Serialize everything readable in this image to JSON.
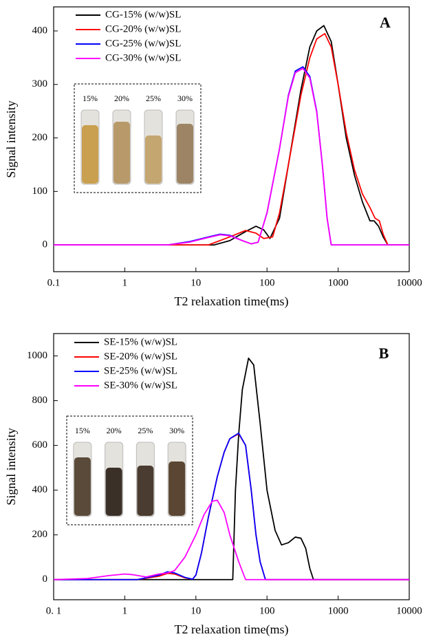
{
  "chart_data": [
    {
      "type": "line",
      "panel_label": "A",
      "xlabel": "T2 relaxation time(ms)",
      "ylabel": "Signal intensity",
      "xscale": "log",
      "xlim": [
        0.1,
        10000
      ],
      "xticks": [
        0.1,
        1,
        10,
        100,
        1000,
        10000
      ],
      "ylim": [
        -50,
        445
      ],
      "yticks": [
        0,
        100,
        200,
        300,
        400
      ],
      "grid": false,
      "legend": "upper left",
      "inset_labels": [
        "15%",
        "20%",
        "25%",
        "30%"
      ],
      "series": [
        {
          "name": "CG-15% (w/w)SL",
          "color": "#000000",
          "x": [
            0.1,
            18,
            30,
            50,
            70,
            90,
            110,
            150,
            200,
            300,
            400,
            500,
            630,
            800,
            1000,
            1300,
            1700,
            2200,
            2800,
            3200,
            3700,
            4300,
            5000,
            10000
          ],
          "values": [
            0,
            0,
            8,
            25,
            35,
            28,
            12,
            50,
            150,
            290,
            370,
            400,
            410,
            380,
            300,
            200,
            130,
            80,
            45,
            45,
            35,
            15,
            0,
            0
          ]
        },
        {
          "name": "CG-20% (w/w)SL",
          "color": "#ff0000",
          "x": [
            0.1,
            15,
            30,
            50,
            70,
            90,
            120,
            150,
            200,
            300,
            400,
            500,
            650,
            800,
            1000,
            1300,
            1700,
            2200,
            2800,
            3300,
            3800,
            4300,
            5000,
            10000
          ],
          "values": [
            0,
            0,
            15,
            27,
            22,
            12,
            15,
            60,
            150,
            280,
            350,
            385,
            395,
            370,
            300,
            210,
            140,
            95,
            70,
            50,
            45,
            20,
            0,
            0
          ]
        },
        {
          "name": "CG-25% (w/w)SL",
          "color": "#0000ff",
          "x": [
            0.1,
            4,
            8,
            15,
            22,
            30,
            45,
            60,
            75,
            100,
            150,
            200,
            250,
            320,
            400,
            500,
            600,
            700,
            800,
            10000
          ],
          "values": [
            0,
            0,
            6,
            15,
            20,
            18,
            8,
            2,
            5,
            60,
            180,
            280,
            325,
            333,
            315,
            250,
            150,
            50,
            0,
            0
          ]
        },
        {
          "name": "CG-30% (w/w)SL",
          "color": "#ff00ff",
          "x": [
            0.1,
            4,
            8,
            15,
            22,
            30,
            45,
            60,
            75,
            100,
            150,
            200,
            250,
            320,
            400,
            500,
            600,
            700,
            800,
            10000
          ],
          "values": [
            0,
            0,
            5,
            14,
            19,
            17,
            8,
            2,
            5,
            60,
            180,
            278,
            322,
            330,
            312,
            248,
            150,
            50,
            0,
            0
          ]
        }
      ]
    },
    {
      "type": "line",
      "panel_label": "B",
      "xlabel": "T2 relaxation time(ms)",
      "ylabel": "Signal intensity",
      "xscale": "log",
      "xlim": [
        0.1,
        10000
      ],
      "xticks": [
        {
          "value": 0.1,
          "label": "0. 1"
        },
        1,
        10,
        100,
        1000,
        10000
      ],
      "ylim": [
        -90,
        1100
      ],
      "yticks": [
        0,
        200,
        400,
        600,
        800,
        1000
      ],
      "grid": false,
      "legend": "upper left",
      "inset_labels": [
        "15%",
        "20%",
        "25%",
        "30%"
      ],
      "series": [
        {
          "name": "SE-15% (w/w)SL",
          "color": "#000000",
          "x": [
            0.1,
            30,
            33,
            36,
            40,
            45,
            55,
            65,
            80,
            100,
            130,
            160,
            200,
            250,
            300,
            350,
            400,
            450,
            10000
          ],
          "values": [
            0,
            0,
            0,
            400,
            650,
            850,
            990,
            960,
            700,
            400,
            220,
            155,
            165,
            190,
            185,
            140,
            50,
            0,
            0
          ]
        },
        {
          "name": "SE-20% (w/w)SL",
          "color": "#ff0000",
          "x": [
            0.1,
            1.5,
            3,
            4,
            5,
            7,
            9,
            10,
            12,
            15,
            20,
            25,
            30,
            40,
            50,
            60,
            70,
            80,
            95,
            10000
          ],
          "values": [
            0,
            0,
            15,
            28,
            25,
            8,
            2,
            20,
            120,
            280,
            460,
            570,
            630,
            652,
            600,
            400,
            200,
            80,
            0,
            0
          ]
        },
        {
          "name": "SE-25% (w/w)SL",
          "color": "#0000ff",
          "x": [
            0.1,
            1.5,
            3,
            4,
            5,
            7,
            9,
            10,
            12,
            15,
            20,
            25,
            30,
            40,
            50,
            60,
            70,
            80,
            95,
            10000
          ],
          "values": [
            0,
            0,
            20,
            35,
            30,
            10,
            2,
            20,
            120,
            280,
            460,
            570,
            630,
            655,
            600,
            400,
            200,
            80,
            0,
            0
          ]
        },
        {
          "name": "SE-30% (w/w)SL",
          "color": "#ff00ff",
          "x": [
            0.1,
            0.3,
            0.6,
            1,
            1.3,
            2,
            3,
            4,
            5,
            7,
            10,
            13,
            17,
            20,
            25,
            30,
            40,
            50,
            60,
            100,
            10000
          ],
          "values": [
            0,
            5,
            18,
            25,
            22,
            12,
            25,
            30,
            40,
            100,
            200,
            290,
            350,
            355,
            300,
            200,
            80,
            0,
            0,
            0,
            0
          ]
        }
      ]
    }
  ]
}
